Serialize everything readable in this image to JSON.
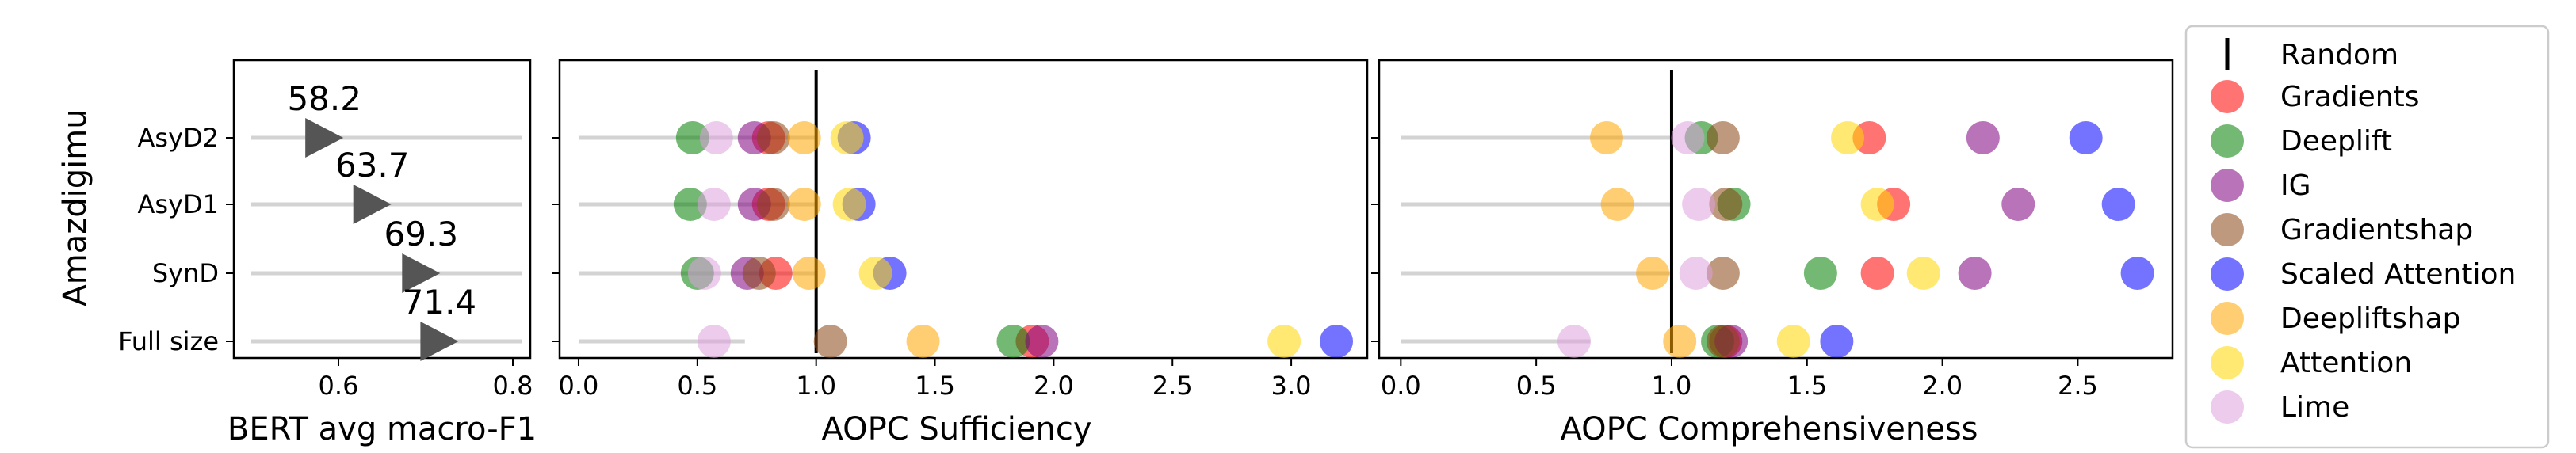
{
  "figure": {
    "ylabel": "Amazdigimu",
    "categories": [
      "AsyD2",
      "AsyD1",
      "SynD",
      "Full size"
    ]
  },
  "chart_data": [
    {
      "type": "scatter",
      "title": "",
      "xlabel": "BERT avg macro-F1",
      "ylabel": "Amazdigimu",
      "categories": [
        "AsyD2",
        "AsyD1",
        "SynD",
        "Full size"
      ],
      "values": [
        0.582,
        0.637,
        0.693,
        0.714
      ],
      "value_labels": [
        "58.2",
        "63.7",
        "69.3",
        "71.4"
      ],
      "xlim": [
        0.48,
        0.82
      ],
      "xticks": [
        0.6,
        0.8
      ],
      "xtick_labels": [
        "0.6",
        "0.8"
      ],
      "marker": "right-triangle",
      "grid": false
    },
    {
      "type": "scatter",
      "title": "",
      "xlabel": "AOPC Sufficiency",
      "categories": [
        "AsyD2",
        "AsyD1",
        "SynD",
        "Full size"
      ],
      "xlim": [
        -0.08,
        3.32
      ],
      "xticks": [
        0.0,
        0.5,
        1.0,
        1.5,
        2.0,
        2.5,
        3.0
      ],
      "xtick_labels": [
        "0.0",
        "0.5",
        "1.0",
        "1.5",
        "2.0",
        "2.5",
        "3.0"
      ],
      "random_line_x": 1.0,
      "series": [
        {
          "name": "Gradients",
          "values": [
            0.8,
            0.8,
            0.83,
            1.91
          ]
        },
        {
          "name": "Deeplift",
          "values": [
            0.48,
            0.47,
            0.5,
            1.83
          ]
        },
        {
          "name": "IG",
          "values": [
            0.74,
            0.74,
            0.71,
            1.95
          ]
        },
        {
          "name": "Gradientshap",
          "values": [
            0.82,
            0.82,
            0.76,
            1.06
          ]
        },
        {
          "name": "Scaled Attention",
          "values": [
            1.16,
            1.18,
            1.31,
            3.19
          ]
        },
        {
          "name": "Deepliftshap",
          "values": [
            0.95,
            0.95,
            0.97,
            1.45
          ]
        },
        {
          "name": "Attention",
          "values": [
            1.13,
            1.14,
            1.25,
            2.97
          ]
        },
        {
          "name": "Lime",
          "values": [
            0.58,
            0.57,
            0.53,
            0.57
          ]
        }
      ]
    },
    {
      "type": "scatter",
      "title": "",
      "xlabel": "AOPC Comprehensiveness",
      "categories": [
        "AsyD2",
        "AsyD1",
        "SynD",
        "Full size"
      ],
      "xlim": [
        -0.08,
        2.85
      ],
      "xticks": [
        0.0,
        0.5,
        1.0,
        1.5,
        2.0,
        2.5
      ],
      "xtick_labels": [
        "0.0",
        "0.5",
        "1.0",
        "1.5",
        "2.0",
        "2.5"
      ],
      "random_line_x": 1.0,
      "series": [
        {
          "name": "Gradients",
          "values": [
            1.73,
            1.82,
            1.76,
            1.2
          ]
        },
        {
          "name": "Deeplift",
          "values": [
            1.11,
            1.23,
            1.55,
            1.17
          ]
        },
        {
          "name": "IG",
          "values": [
            2.15,
            2.28,
            2.12,
            1.22
          ]
        },
        {
          "name": "Gradientshap",
          "values": [
            1.19,
            1.2,
            1.19,
            1.19
          ]
        },
        {
          "name": "Scaled Attention",
          "values": [
            2.53,
            2.65,
            2.72,
            1.61
          ]
        },
        {
          "name": "Deepliftshap",
          "values": [
            0.76,
            0.8,
            0.93,
            1.03
          ]
        },
        {
          "name": "Attention",
          "values": [
            1.65,
            1.76,
            1.93,
            1.45
          ]
        },
        {
          "name": "Lime",
          "values": [
            1.06,
            1.1,
            1.09,
            0.64
          ]
        }
      ]
    }
  ],
  "legend": {
    "position": "right",
    "random_label": "Random",
    "items": [
      {
        "name": "Gradients",
        "color": "#ff0000"
      },
      {
        "name": "Deeplift",
        "color": "#008000"
      },
      {
        "name": "IG",
        "color": "#800080"
      },
      {
        "name": "Gradientshap",
        "color": "#8b4513"
      },
      {
        "name": "Scaled Attention",
        "color": "#0000ff"
      },
      {
        "name": "Deepliftshap",
        "color": "#ffa500"
      },
      {
        "name": "Attention",
        "color": "#ffd700"
      },
      {
        "name": "Lime",
        "color": "#dda0dd"
      }
    ]
  }
}
